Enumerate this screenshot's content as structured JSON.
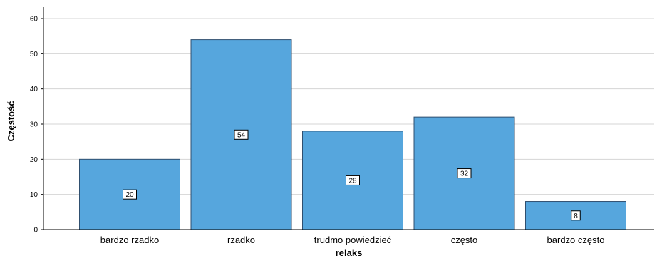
{
  "chart_data": {
    "type": "bar",
    "title": "",
    "xlabel": "relaks",
    "ylabel": "Częstość",
    "categories": [
      "bardzo rzadko",
      "rzadko",
      "trudmo powiedzieć",
      "często",
      "bardzo często"
    ],
    "values": [
      20,
      54,
      28,
      32,
      8
    ],
    "data_labels": [
      "20",
      "54",
      "28",
      "32",
      "8"
    ],
    "ylim": [
      0,
      60
    ],
    "yticks": [
      0,
      10,
      20,
      30,
      40,
      50,
      60
    ],
    "ytick_labels": [
      "0",
      "10",
      "20",
      "30",
      "40",
      "50",
      "60"
    ],
    "grid": true,
    "legend": "none",
    "colors": {
      "bar_fill": "#56a6dd",
      "bar_stroke": "#2f4f6f",
      "grid": "#d4d4d4",
      "axis": "#000000",
      "label_box_fill": "#ffffff",
      "label_box_stroke": "#000000"
    }
  }
}
